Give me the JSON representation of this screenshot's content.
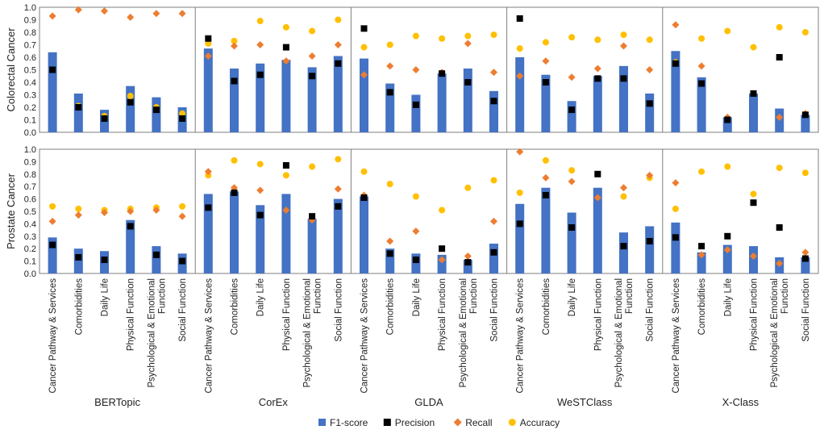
{
  "chart_data": {
    "type": "bar",
    "models": [
      "BERTopic",
      "CorEx",
      "GLDA",
      "WeSTClass",
      "X-Class"
    ],
    "categories": [
      "Cancer Pathway & Services",
      "Comorbidities",
      "Daily Life",
      "Physical Function",
      "Psychological & Emotional Function",
      "Social Function"
    ],
    "category_lines": [
      [
        "Cancer Pathway & Services"
      ],
      [
        "Comorbidities"
      ],
      [
        "Daily Life"
      ],
      [
        "Physical Function"
      ],
      [
        "Psychological & Emotional",
        "Function"
      ],
      [
        "Social Function"
      ]
    ],
    "ylim": [
      0,
      1.0
    ],
    "yticks": [
      "0.0",
      "0.1",
      "0.2",
      "0.3",
      "0.4",
      "0.5",
      "0.6",
      "0.7",
      "0.8",
      "0.9",
      "1.0"
    ],
    "legend": [
      {
        "name": "F1-score",
        "marker": "bar",
        "color": "#4472C4"
      },
      {
        "name": "Precision",
        "marker": "square",
        "color": "#000000"
      },
      {
        "name": "Recall",
        "marker": "diamond",
        "color": "#ED7D31"
      },
      {
        "name": "Accuracy",
        "marker": "circle",
        "color": "#FFC000"
      }
    ],
    "rows": [
      {
        "ylabel": "Colorectal Cancer",
        "groups": [
          {
            "model": "BERTopic",
            "f1": [
              0.64,
              0.31,
              0.18,
              0.37,
              0.28,
              0.2
            ],
            "precision": [
              0.5,
              0.2,
              0.11,
              0.24,
              0.18,
              0.11
            ],
            "recall": [
              0.93,
              0.98,
              0.97,
              0.92,
              0.95,
              0.95
            ],
            "accuracy": [
              0.5,
              0.21,
              0.13,
              0.29,
              0.2,
              0.15
            ]
          },
          {
            "model": "CorEx",
            "f1": [
              0.67,
              0.51,
              0.55,
              0.58,
              0.52,
              0.61
            ],
            "precision": [
              0.75,
              0.41,
              0.46,
              0.68,
              0.45,
              0.55
            ],
            "recall": [
              0.61,
              0.69,
              0.7,
              0.57,
              0.61,
              0.7
            ],
            "accuracy": [
              0.71,
              0.73,
              0.89,
              0.84,
              0.81,
              0.9
            ]
          },
          {
            "model": "GLDA",
            "f1": [
              0.59,
              0.39,
              0.3,
              0.47,
              0.51,
              0.33
            ],
            "precision": [
              0.83,
              0.32,
              0.22,
              0.47,
              0.4,
              0.25
            ],
            "recall": [
              0.46,
              0.53,
              0.5,
              0.48,
              0.71,
              0.48
            ],
            "accuracy": [
              0.68,
              0.7,
              0.77,
              0.75,
              0.77,
              0.78
            ]
          },
          {
            "model": "WeSTClass",
            "f1": [
              0.6,
              0.46,
              0.25,
              0.45,
              0.53,
              0.31
            ],
            "precision": [
              0.91,
              0.4,
              0.18,
              0.43,
              0.43,
              0.23
            ],
            "recall": [
              0.45,
              0.57,
              0.44,
              0.51,
              0.69,
              0.5
            ],
            "accuracy": [
              0.67,
              0.72,
              0.76,
              0.74,
              0.78,
              0.74
            ]
          },
          {
            "model": "X-Class",
            "f1": [
              0.65,
              0.44,
              0.12,
              0.31,
              0.19,
              0.14
            ],
            "precision": [
              0.55,
              0.39,
              0.1,
              0.31,
              0.6,
              0.14
            ],
            "recall": [
              0.86,
              0.53,
              0.12,
              0.31,
              0.12,
              0.15
            ],
            "accuracy": [
              0.56,
              0.75,
              0.81,
              0.68,
              0.84,
              0.8
            ]
          }
        ]
      },
      {
        "ylabel": "Prostate Cancer",
        "groups": [
          {
            "model": "BERTopic",
            "f1": [
              0.29,
              0.2,
              0.18,
              0.43,
              0.22,
              0.16
            ],
            "precision": [
              0.23,
              0.13,
              0.11,
              0.38,
              0.15,
              0.1
            ],
            "recall": [
              0.42,
              0.47,
              0.49,
              0.5,
              0.51,
              0.46
            ],
            "accuracy": [
              0.54,
              0.52,
              0.51,
              0.52,
              0.53,
              0.54
            ]
          },
          {
            "model": "CorEx",
            "f1": [
              0.64,
              0.66,
              0.55,
              0.64,
              0.44,
              0.6
            ],
            "precision": [
              0.53,
              0.65,
              0.47,
              0.87,
              0.46,
              0.54
            ],
            "recall": [
              0.82,
              0.69,
              0.67,
              0.51,
              0.43,
              0.68
            ],
            "accuracy": [
              0.79,
              0.91,
              0.88,
              0.79,
              0.86,
              0.92
            ]
          },
          {
            "model": "GLDA",
            "f1": [
              0.62,
              0.2,
              0.16,
              0.15,
              0.11,
              0.24
            ],
            "precision": [
              0.61,
              0.16,
              0.11,
              0.2,
              0.09,
              0.17
            ],
            "recall": [
              0.63,
              0.26,
              0.34,
              0.11,
              0.14,
              0.42
            ],
            "accuracy": [
              0.82,
              0.72,
              0.62,
              0.51,
              0.69,
              0.75
            ]
          },
          {
            "model": "WeSTClass",
            "f1": [
              0.56,
              0.69,
              0.49,
              0.69,
              0.33,
              0.38
            ],
            "precision": [
              0.4,
              0.63,
              0.37,
              0.8,
              0.22,
              0.26
            ],
            "recall": [
              0.98,
              0.77,
              0.74,
              0.61,
              0.69,
              0.79
            ],
            "accuracy": [
              0.65,
              0.91,
              0.83,
              0.8,
              0.62,
              0.77
            ]
          },
          {
            "model": "X-Class",
            "f1": [
              0.41,
              0.17,
              0.23,
              0.22,
              0.13,
              0.13
            ],
            "precision": [
              0.29,
              0.22,
              0.3,
              0.57,
              0.37,
              0.12
            ],
            "recall": [
              0.73,
              0.15,
              0.19,
              0.14,
              0.08,
              0.17
            ],
            "accuracy": [
              0.52,
              0.82,
              0.86,
              0.64,
              0.85,
              0.81
            ]
          }
        ]
      }
    ]
  }
}
